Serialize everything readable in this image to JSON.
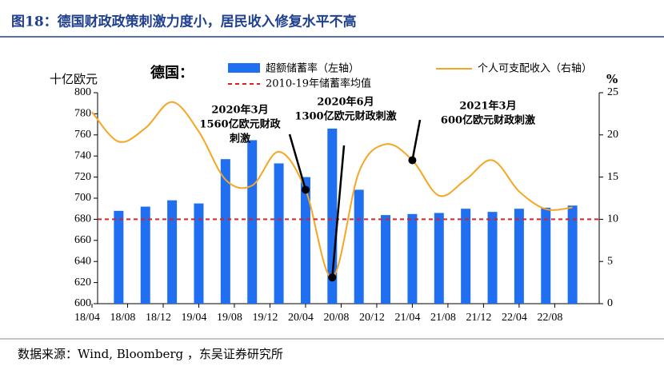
{
  "chart_data": {
    "type": "bar_line",
    "title": "图18：德国财政政策刺激力度小，居民收入修复水平不高",
    "source": "数据来源：Wind, Bloomberg ，东吴证券研究所",
    "legend_title": "德国：",
    "ylabel": "十亿欧元",
    "y2label": "%",
    "ylim": [
      600,
      800
    ],
    "yticks": [
      600,
      620,
      640,
      660,
      680,
      700,
      720,
      740,
      760,
      780,
      800
    ],
    "y2lim": [
      0,
      25
    ],
    "y2ticks": [
      0,
      5,
      10,
      15,
      20,
      25
    ],
    "xlim": [
      "18/04",
      "23/01"
    ],
    "xticks": [
      "18/04",
      "18/08",
      "18/12",
      "19/04",
      "19/08",
      "19/12",
      "20/04",
      "20/08",
      "20/12",
      "21/04",
      "21/08",
      "21/12",
      "22/04",
      "22/08"
    ],
    "series": [
      {
        "name": "超额储蓄率（左轴）",
        "type": "bar",
        "color": "#1f6ff0",
        "x": [
          "18/07",
          "18/10",
          "19/01",
          "19/04",
          "19/07",
          "19/10",
          "20/01",
          "20/04",
          "20/07",
          "20/10",
          "21/01",
          "21/04",
          "21/07",
          "21/10",
          "22/01",
          "22/04",
          "22/07",
          "22/10"
        ],
        "values": [
          688,
          692,
          698,
          695,
          737,
          755,
          733,
          720,
          766,
          708,
          684,
          685,
          686,
          690,
          687,
          690,
          691,
          693
        ]
      },
      {
        "name": "个人可支配收入（右轴）",
        "type": "line",
        "axis": "y2",
        "color": "#f5a623",
        "x": [
          "18/04",
          "18/07",
          "18/10",
          "19/01",
          "19/04",
          "19/07",
          "19/10",
          "20/01",
          "20/04",
          "20/07",
          "20/10",
          "21/01",
          "21/04",
          "21/07",
          "21/10",
          "22/01",
          "22/04",
          "22/07",
          "22/10"
        ],
        "values": [
          22.7,
          19.2,
          20.8,
          23.9,
          20.4,
          14.7,
          14.0,
          18.0,
          13.5,
          3.1,
          15.6,
          18.9,
          17.0,
          12.8,
          14.7,
          17.0,
          13.3,
          11.2,
          11.4
        ]
      }
    ],
    "reference_line": {
      "name": "2010-19年储蓄率均值",
      "axis": "y2",
      "value": 10,
      "color": "#e02020"
    },
    "annotations": [
      {
        "lines": [
          "2020年3月",
          "1560亿欧元财政",
          "刺激"
        ],
        "x": "20/04"
      },
      {
        "lines": [
          "2020年6月",
          "1300亿欧元财政刺激"
        ],
        "x": "20/07"
      },
      {
        "lines": [
          "2021年3月",
          "600亿欧元财政刺激"
        ],
        "x": "21/04"
      }
    ]
  }
}
